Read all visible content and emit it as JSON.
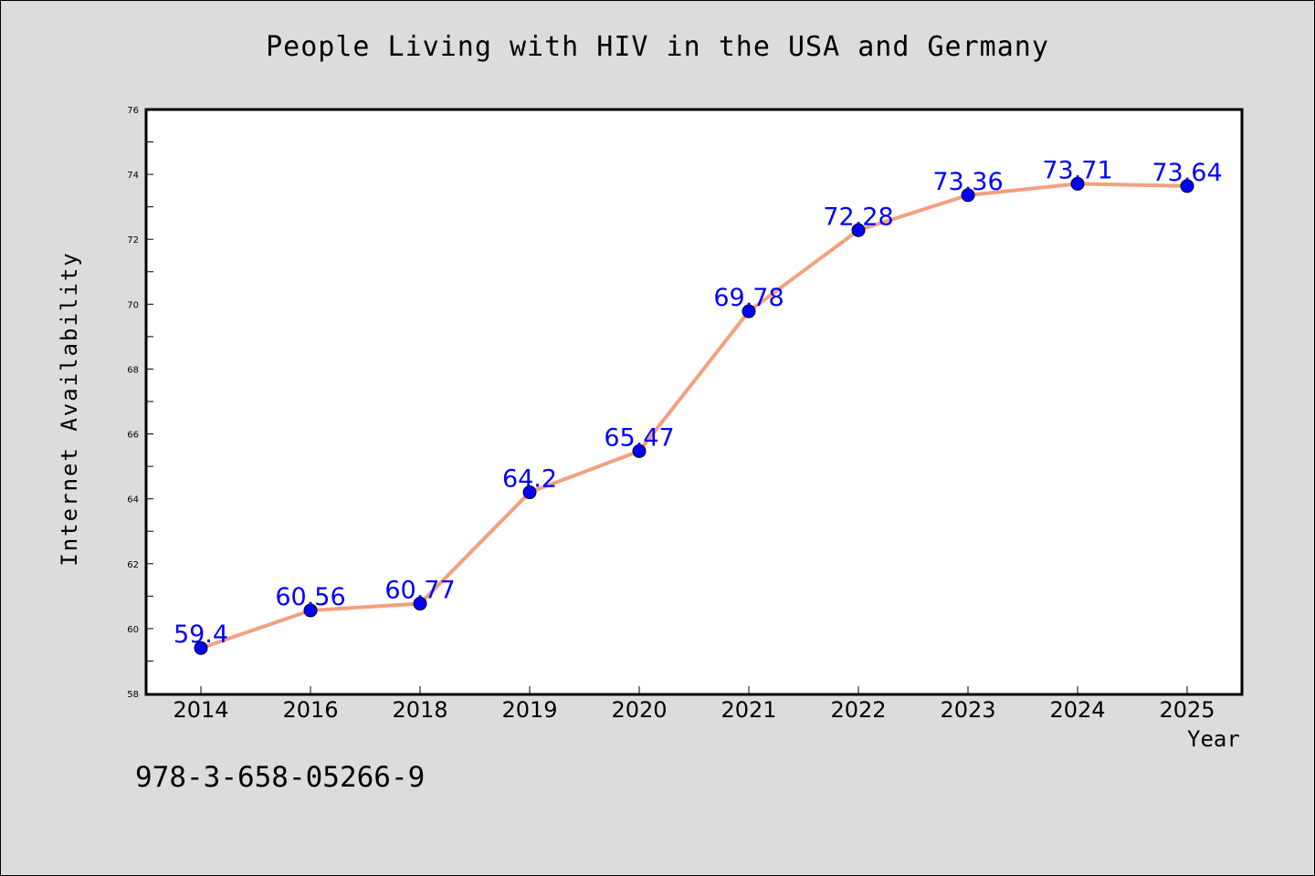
{
  "chart_data": {
    "type": "line",
    "title": "People Living with HIV in the USA and Germany",
    "xlabel": "Year",
    "ylabel": "Internet Availability",
    "categories": [
      "2014",
      "2016",
      "2018",
      "2019",
      "2020",
      "2021",
      "2022",
      "2023",
      "2024",
      "2025"
    ],
    "series": [
      {
        "values": [
          59.4,
          60.56,
          60.77,
          64.2,
          65.47,
          69.78,
          72.28,
          73.36,
          73.71,
          73.64
        ],
        "labels": [
          "59.4",
          "60.56",
          "60.77",
          "64.2",
          "65.47",
          "69.78",
          "72.28",
          "73.36",
          "73.71",
          "73.64"
        ]
      }
    ],
    "ylim": [
      58,
      76
    ],
    "yticks": [
      "58",
      "60",
      "62",
      "64",
      "66",
      "68",
      "70",
      "72",
      "74",
      "76"
    ],
    "grid": false,
    "colors": {
      "line": "#f4a07e",
      "marker": "#0000ff",
      "label": "#0000ff",
      "background": "#dcdcdc",
      "plot_area": "#ffffff"
    }
  },
  "footnote": "978-3-658-05266-9"
}
